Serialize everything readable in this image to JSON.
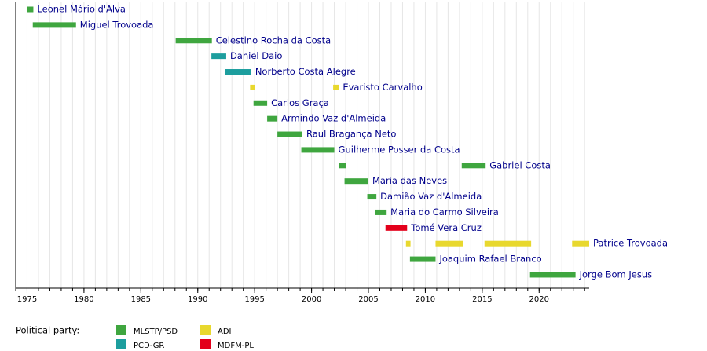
{
  "chart_data": {
    "type": "timeline",
    "xlim": [
      1974,
      2024.4
    ],
    "xticks": [
      1975,
      1980,
      1985,
      1990,
      1995,
      2000,
      2005,
      2010,
      2015,
      2020
    ],
    "minor_xticks": [
      1974,
      1975,
      1976,
      1977,
      1978,
      1979,
      1980,
      1981,
      1982,
      1983,
      1984,
      1985,
      1986,
      1987,
      1988,
      1989,
      1990,
      1991,
      1992,
      1993,
      1994,
      1995,
      1996,
      1997,
      1998,
      1999,
      2000,
      2001,
      2002,
      2003,
      2004,
      2005,
      2006,
      2007,
      2008,
      2009,
      2010,
      2011,
      2012,
      2013,
      2014,
      2015,
      2016,
      2017,
      2018,
      2019,
      2020,
      2021,
      2022,
      2023,
      2024
    ],
    "grid": true,
    "rows": [
      {
        "name": "Leonel Mário d'Alva",
        "color": "#3fa63f",
        "segments": [
          [
            1975.0,
            1975.55
          ]
        ]
      },
      {
        "name": "Miguel Trovoada",
        "color": "#3fa63f",
        "segments": [
          [
            1975.5,
            1979.3
          ]
        ]
      },
      {
        "name": "Celestino Rocha da Costa",
        "color": "#3fa63f",
        "segments": [
          [
            1988.06,
            1991.24
          ]
        ]
      },
      {
        "name": "Daniel Daio",
        "color": "#1d9e9e",
        "segments": [
          [
            1991.2,
            1992.5
          ]
        ]
      },
      {
        "name": "Norberto Costa Alegre",
        "color": "#1d9e9e",
        "segments": [
          [
            1992.4,
            1994.7
          ]
        ]
      },
      {
        "name": "Evaristo Carvalho",
        "color": "#e8d82e",
        "segments": [
          [
            1994.6,
            1995.0
          ],
          [
            2001.9,
            2002.4
          ]
        ]
      },
      {
        "name": "Carlos Graça",
        "color": "#3fa63f",
        "segments": [
          [
            1994.9,
            1996.1
          ]
        ]
      },
      {
        "name": "Armindo Vaz d'Almeida",
        "color": "#3fa63f",
        "segments": [
          [
            1996.1,
            1997.0
          ]
        ]
      },
      {
        "name": "Raul Bragança Neto",
        "color": "#3fa63f",
        "segments": [
          [
            1997.0,
            1999.2
          ]
        ]
      },
      {
        "name": "Guilherme Posser da Costa",
        "color": "#3fa63f",
        "segments": [
          [
            1999.1,
            2002.0
          ]
        ]
      },
      {
        "name": "Gabriel Costa",
        "color": "#3fa63f",
        "segments": [
          [
            2002.4,
            2003.0
          ],
          [
            2013.2,
            2015.3
          ]
        ]
      },
      {
        "name": "Maria das Neves",
        "color": "#3fa63f",
        "segments": [
          [
            2002.9,
            2005.0
          ]
        ]
      },
      {
        "name": "Damião Vaz d'Almeida",
        "color": "#3fa63f",
        "segments": [
          [
            2004.9,
            2005.7
          ]
        ]
      },
      {
        "name": "Maria do Carmo Silveira",
        "color": "#3fa63f",
        "segments": [
          [
            2005.6,
            2006.6
          ]
        ]
      },
      {
        "name": "Tomé Vera Cruz",
        "color": "#e3001b",
        "segments": [
          [
            2006.5,
            2008.4
          ]
        ]
      },
      {
        "name": "Patrice Trovoada",
        "color": "#e8d82e",
        "segments": [
          [
            2008.3,
            2008.7
          ],
          [
            2010.9,
            2013.3
          ],
          [
            2015.2,
            2019.3
          ],
          [
            2022.9,
            2024.4
          ]
        ]
      },
      {
        "name": "Joaquim Rafael Branco",
        "color": "#3fa63f",
        "segments": [
          [
            2008.65,
            2010.9
          ]
        ]
      },
      {
        "name": "Jorge Bom Jesus",
        "color": "#3fa63f",
        "segments": [
          [
            2019.2,
            2023.2
          ]
        ]
      }
    ],
    "legend_title": "Political party:",
    "series": [
      {
        "name": "MLSTP/PSD",
        "color": "#3fa63f"
      },
      {
        "name": "PCD-GR",
        "color": "#1d9e9e"
      },
      {
        "name": "ADI",
        "color": "#e8d82e"
      },
      {
        "name": "MDFM-PL",
        "color": "#e3001b"
      }
    ]
  }
}
